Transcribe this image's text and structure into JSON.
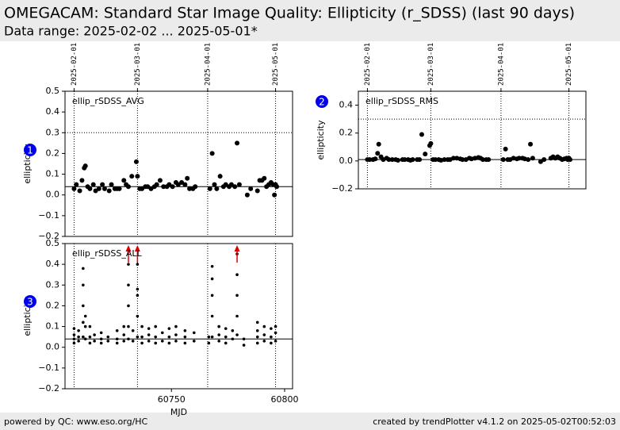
{
  "header": {
    "title": "OMEGACAM: Standard Star Image Quality: Ellipticity (r_SDSS) (last 90 days)",
    "subtitle": "Data range: 2025-02-02 ... 2025-05-01*"
  },
  "footer": {
    "left": "powered by QC: www.eso.org/HC",
    "right": "created by trendPlotter v4.1.2 on 2025-05-02T00:52:03"
  },
  "chart_data": [
    {
      "type": "scatter",
      "label": "ellip_rSDSS_AVG",
      "badge": "1",
      "ylabel": "ellipticity",
      "color": "#000000",
      "xlim": [
        60703,
        60803.5
      ],
      "ylim": [
        -0.2,
        0.5
      ],
      "yticks": [
        {
          "value": -0.2,
          "label": "−0.2"
        },
        {
          "value": -0.1,
          "label": "−0.1"
        },
        {
          "value": 0,
          "label": "0.0"
        },
        0.1,
        0.2,
        0.3,
        0.4,
        0.5
      ],
      "x2ticks": [
        {
          "value": 60707,
          "label": "2025-02-01"
        },
        {
          "value": 60735,
          "label": "2025-03-01"
        },
        {
          "value": 60766,
          "label": "2025-04-01"
        },
        {
          "value": 60796,
          "label": "2025-05-01"
        }
      ],
      "limit_line": 0.3,
      "ref_line": 0.04,
      "x": [
        60707,
        60708,
        60709.5,
        60710.5,
        60711.5,
        60712,
        60713,
        60714,
        60715.5,
        60716.5,
        60718,
        60719.5,
        60720.5,
        60722.5,
        60723.5,
        60725,
        60726,
        60727,
        60729,
        60730,
        60731,
        60732.5,
        60734.5,
        60735,
        60736,
        60737,
        60738.5,
        60739.5,
        60741,
        60742.5,
        60743.5,
        60745,
        60746.5,
        60748,
        60749,
        60750.5,
        60752,
        60753,
        60754.5,
        60756,
        60757,
        60758,
        60759.5,
        60760.5,
        60767,
        60768,
        60769,
        60770,
        60771.5,
        60773,
        60774,
        60775.5,
        60776.5,
        60778,
        60779,
        60780,
        60783.5,
        60785,
        60788,
        60789,
        60790,
        60791,
        60792,
        60793,
        60794,
        60795,
        60795.5,
        60796,
        60796.5
      ],
      "values": [
        0.03,
        0.05,
        0.02,
        0.07,
        0.13,
        0.14,
        0.04,
        0.03,
        0.05,
        0.02,
        0.03,
        0.05,
        0.03,
        0.02,
        0.05,
        0.03,
        0.03,
        0.03,
        0.07,
        0.05,
        0.04,
        0.09,
        0.16,
        0.09,
        0.03,
        0.03,
        0.04,
        0.04,
        0.03,
        0.04,
        0.05,
        0.07,
        0.04,
        0.04,
        0.05,
        0.04,
        0.06,
        0.05,
        0.06,
        0.05,
        0.08,
        0.03,
        0.03,
        0.04,
        0.03,
        0.2,
        0.05,
        0.03,
        0.09,
        0.04,
        0.05,
        0.04,
        0.05,
        0.04,
        0.25,
        0.05,
        0,
        0.03,
        0.02,
        0.07,
        0.07,
        0.08,
        0.04,
        0.05,
        0.06,
        0.05,
        0,
        0.05,
        0.04
      ]
    },
    {
      "type": "scatter",
      "label": "ellip_rSDSS_RMS",
      "badge": "2",
      "ylabel": "ellipticity",
      "color": "#000000",
      "xlim": [
        60703,
        60803.5
      ],
      "ylim": [
        -0.2,
        0.5
      ],
      "yticks": [
        {
          "value": -0.2,
          "label": "−0.2"
        },
        {
          "value": 0,
          "label": "0.0"
        },
        0.2,
        0.4
      ],
      "x2ticks": [
        {
          "value": 60707,
          "label": "2025-02-01"
        },
        {
          "value": 60735,
          "label": "2025-03-01"
        },
        {
          "value": 60766,
          "label": "2025-04-01"
        },
        {
          "value": 60796,
          "label": "2025-05-01"
        }
      ],
      "limit_line": 0.3,
      "ref_line": 0.01,
      "x": [
        60707,
        60708,
        60709.5,
        60710.5,
        60711.5,
        60712,
        60713,
        60714,
        60715.5,
        60716.5,
        60718,
        60719.5,
        60720.5,
        60722.5,
        60723.5,
        60725,
        60726,
        60727,
        60729,
        60730,
        60731,
        60732.5,
        60734.5,
        60735,
        60736,
        60737,
        60738.5,
        60739.5,
        60741,
        60742.5,
        60743.5,
        60745,
        60746.5,
        60748,
        60749,
        60750.5,
        60752,
        60753,
        60754.5,
        60756,
        60757,
        60758,
        60759.5,
        60760.5,
        60767,
        60768,
        60769,
        60770,
        60771.5,
        60773,
        60774,
        60775.5,
        60776.5,
        60778,
        60779,
        60780,
        60783.5,
        60785,
        60788,
        60789,
        60790,
        60791,
        60792,
        60793,
        60794,
        60795,
        60795.5,
        60796,
        60796.5
      ],
      "values": [
        0.01,
        0.01,
        0.01,
        0.015,
        0.055,
        0.12,
        0.03,
        0.01,
        0.02,
        0.01,
        0.01,
        0.01,
        0.005,
        0.01,
        0.01,
        0.01,
        0.005,
        0.01,
        0.01,
        0.01,
        0.19,
        0.05,
        0.11,
        0.125,
        0.01,
        0.01,
        0.01,
        0.005,
        0.01,
        0.01,
        0.01,
        0.02,
        0.02,
        0.015,
        0.01,
        0.01,
        0.02,
        0.015,
        0.02,
        0.025,
        0.02,
        0.01,
        0.01,
        0.01,
        0.01,
        0.085,
        0.01,
        0.01,
        0.02,
        0.015,
        0.02,
        0.02,
        0.015,
        0.01,
        0.12,
        0.02,
        -0.005,
        0.01,
        0.02,
        0.03,
        0.02,
        0.03,
        0.02,
        0.01,
        0.015,
        0.02,
        0.01,
        0.02,
        0.01
      ]
    },
    {
      "type": "scatter",
      "label": "ellip_rSDSS_ALL",
      "badge": "3",
      "ylabel": "ellipticity",
      "xlabel": "MJD",
      "color": "#000000",
      "xlim": [
        60703,
        60803.5
      ],
      "ylim": [
        -0.2,
        0.5
      ],
      "yticks": [
        {
          "value": -0.2,
          "label": "−0.2"
        },
        {
          "value": -0.1,
          "label": "−0.1"
        },
        {
          "value": 0,
          "label": "0.0"
        },
        0.1,
        0.2,
        0.3,
        0.4,
        0.5
      ],
      "xticks": [
        60750,
        60800
      ],
      "vlines": [
        60707,
        60735,
        60766,
        60796
      ],
      "ref_line": 0.04,
      "outliers_x": [
        60731,
        60735,
        60779
      ],
      "outlier_color": "#dd0000",
      "x": [
        60707,
        60707,
        60707,
        60707,
        60709,
        60709,
        60709,
        60711,
        60711,
        60711,
        60711,
        60711,
        60712,
        60712,
        60712,
        60714,
        60714,
        60714,
        60716,
        60716,
        60719,
        60719,
        60719,
        60722,
        60722,
        60726,
        60726,
        60726,
        60729,
        60729,
        60729,
        60731,
        60731,
        60731,
        60731,
        60731,
        60733,
        60733,
        60735,
        60735,
        60735,
        60735,
        60735,
        60737,
        60737,
        60737,
        60740,
        60740,
        60740,
        60743,
        60743,
        60743,
        60746,
        60746,
        60749,
        60749,
        60749,
        60752,
        60752,
        60752,
        60756,
        60756,
        60756,
        60760,
        60760,
        60766.5,
        60766.5,
        60768,
        60768,
        60768,
        60768,
        60768,
        60771,
        60771,
        60771,
        60774,
        60774,
        60774,
        60777,
        60777,
        60779,
        60779,
        60779,
        60779,
        60779,
        60782,
        60782,
        60788,
        60788,
        60788,
        60788,
        60791,
        60791,
        60791,
        60794,
        60794,
        60794,
        60796,
        60796,
        60796
      ],
      "values": [
        0.02,
        0.04,
        0.06,
        0.09,
        0.03,
        0.05,
        0.08,
        0.05,
        0.12,
        0.2,
        0.3,
        0.38,
        0.04,
        0.1,
        0.15,
        0.02,
        0.05,
        0.1,
        0.03,
        0.06,
        0.02,
        0.04,
        0.07,
        0.03,
        0.05,
        0.02,
        0.04,
        0.08,
        0.03,
        0.06,
        0.1,
        0.04,
        0.1,
        0.2,
        0.3,
        0.4,
        0.03,
        0.08,
        0.05,
        0.15,
        0.25,
        0.28,
        0.4,
        0.02,
        0.05,
        0.1,
        0.03,
        0.06,
        0.09,
        0.02,
        0.05,
        0.1,
        0.03,
        0.07,
        0.02,
        0.05,
        0.09,
        0.03,
        0.06,
        0.1,
        0.02,
        0.05,
        0.08,
        0.03,
        0.07,
        0.02,
        0.05,
        0.05,
        0.15,
        0.25,
        0.33,
        0.39,
        0.03,
        0.06,
        0.1,
        0.02,
        0.05,
        0.09,
        0.04,
        0.08,
        0.06,
        0.15,
        0.25,
        0.35,
        0.45,
        0.01,
        0.04,
        0.02,
        0.05,
        0.08,
        0.12,
        0.03,
        0.06,
        0.1,
        0.02,
        0.05,
        0.09,
        0.03,
        0.07,
        0.1
      ]
    }
  ]
}
